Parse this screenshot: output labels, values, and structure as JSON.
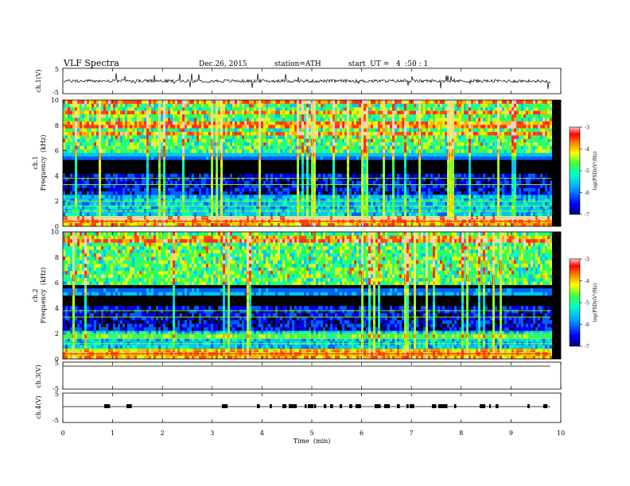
{
  "header": {
    "title": "VLF Spectra",
    "date": "Dec.26, 2015",
    "station": "station=ATH",
    "start": "start  UT =   4  :50 : 1"
  },
  "chart_data": [
    {
      "type": "line",
      "panel": "ch1-waveform",
      "ylabel": "ch.1(V)",
      "yticks": [
        "5",
        "-5"
      ],
      "ylim": [
        -5,
        5
      ],
      "baseline_value": 0
    },
    {
      "type": "heatmap",
      "panel": "ch1-spectrogram",
      "ylabel_channel": "ch.1",
      "ylabel": "Frequency  (kHz)",
      "yticks": [
        "10",
        "8",
        "6",
        "4",
        "2",
        "0"
      ],
      "ylim": [
        0,
        10
      ],
      "colorbar": {
        "label": "log(PSD)(V²/Hz)",
        "ticks": [
          "-3",
          "-4",
          "-5",
          "-6",
          "-7"
        ],
        "range": [
          -7,
          -3
        ],
        "colors": [
          "#000080",
          "#0000ff",
          "#00a0ff",
          "#00ffd0",
          "#40ff40",
          "#ffff00",
          "#ff8000",
          "#ff0000",
          "#ffd0d0"
        ]
      }
    },
    {
      "type": "heatmap",
      "panel": "ch2-spectrogram",
      "ylabel_channel": "ch.2",
      "ylabel": "Frequency  (kHz)",
      "yticks": [
        "10",
        "8",
        "6",
        "4",
        "2",
        "0"
      ],
      "ylim": [
        0,
        10
      ],
      "colorbar": {
        "label": "log(PSD)(V²/Hz)",
        "ticks": [
          "-3",
          "-4",
          "-5",
          "-6",
          "-7"
        ],
        "range": [
          -7,
          -3
        ]
      }
    },
    {
      "type": "line",
      "panel": "ch3-waveform",
      "ylabel": "ch.3(V)",
      "yticks": [
        "5",
        "-5"
      ],
      "ylim": [
        -5,
        5
      ]
    },
    {
      "type": "line",
      "panel": "ch4-waveform",
      "ylabel": "ch.4(V)",
      "yticks": [
        "5",
        "-5"
      ],
      "ylim": [
        -5,
        5
      ]
    }
  ],
  "xaxis": {
    "label": "Time  (min)",
    "ticks": [
      "0",
      "1",
      "2",
      "3",
      "4",
      "5",
      "6",
      "7",
      "8",
      "9",
      "10"
    ],
    "range": [
      0,
      10
    ],
    "data_end": 9.8
  }
}
